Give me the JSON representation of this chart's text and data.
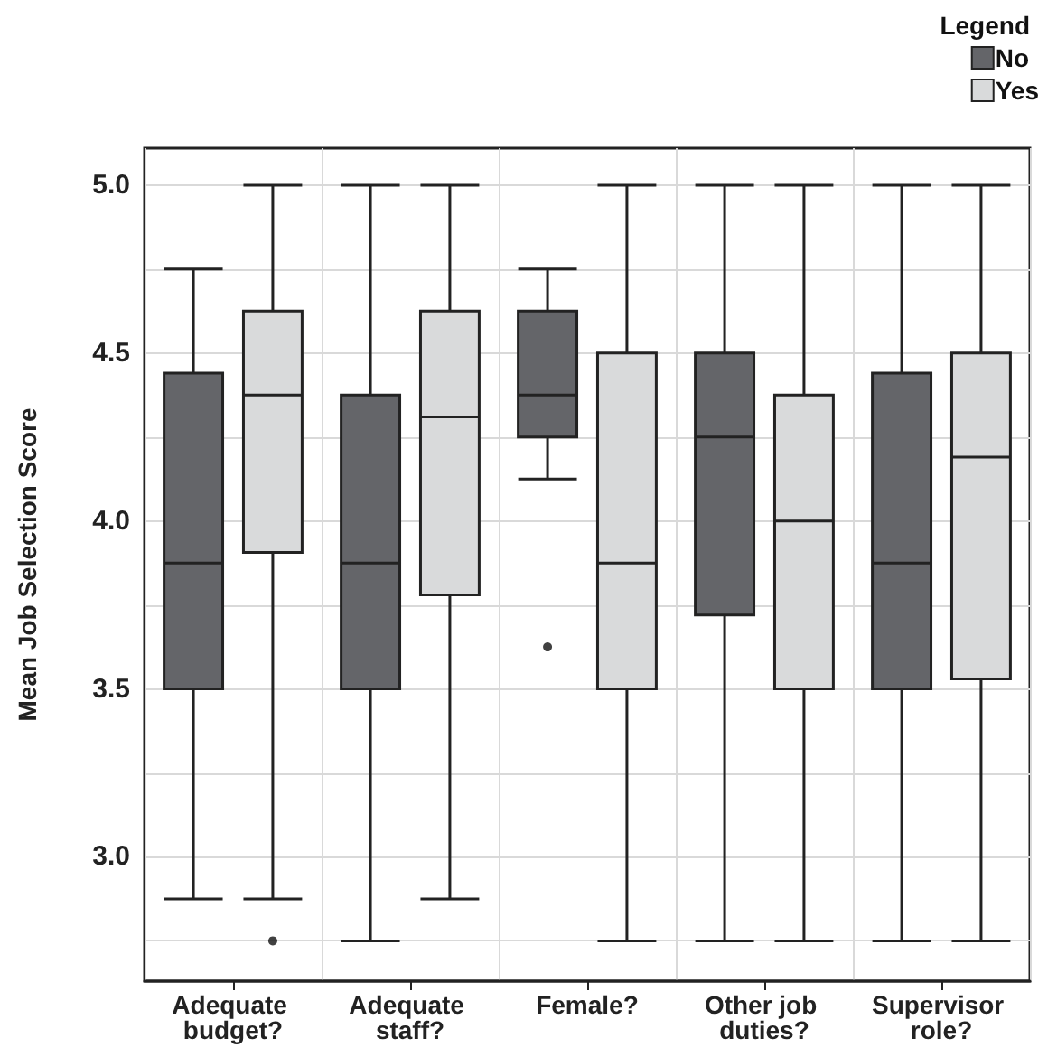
{
  "chart_data": {
    "type": "box",
    "ylabel": "Mean Job Selection Score",
    "legend_title": "Legend",
    "categories": [
      "Adequate budget?",
      "Adequate staff?",
      "Female?",
      "Other job duties?",
      "Supervisor role?"
    ],
    "series": [
      {
        "name": "No",
        "color": "#646569",
        "boxes": [
          {
            "low": 2.875,
            "q1": 3.5,
            "median": 3.875,
            "q3": 4.44,
            "high": 4.75
          },
          {
            "low": 2.75,
            "q1": 3.5,
            "median": 3.875,
            "q3": 4.375,
            "high": 5.0
          },
          {
            "low": 4.125,
            "q1": 4.25,
            "median": 4.375,
            "q3": 4.625,
            "high": 4.75,
            "outliers": [
              3.625
            ]
          },
          {
            "low": 2.75,
            "q1": 3.72,
            "median": 4.25,
            "q3": 4.5,
            "high": 5.0
          },
          {
            "low": 2.75,
            "q1": 3.5,
            "median": 3.875,
            "q3": 4.44,
            "high": 5.0
          }
        ]
      },
      {
        "name": "Yes",
        "color": "#d9dadb",
        "boxes": [
          {
            "low": 2.875,
            "q1": 3.906,
            "median": 4.375,
            "q3": 4.625,
            "high": 5.0,
            "outliers": [
              2.75
            ]
          },
          {
            "low": 2.875,
            "q1": 3.78,
            "median": 4.31,
            "q3": 4.625,
            "high": 5.0
          },
          {
            "low": 2.75,
            "q1": 3.5,
            "median": 3.875,
            "q3": 4.5,
            "high": 5.0
          },
          {
            "low": 2.75,
            "q1": 3.5,
            "median": 4.0,
            "q3": 4.375,
            "high": 5.0
          },
          {
            "low": 2.75,
            "q1": 3.53,
            "median": 4.19,
            "q3": 4.5,
            "high": 5.0
          }
        ]
      }
    ],
    "ylim": [
      2.63,
      5.11
    ],
    "yticks": [
      {
        "value": 2.75,
        "label": null
      },
      {
        "value": 3,
        "label": "3.0"
      },
      {
        "value": 3.25,
        "label": null
      },
      {
        "value": 3.5,
        "label": "3.5"
      },
      {
        "value": 3.75,
        "label": null
      },
      {
        "value": 4,
        "label": "4.0"
      },
      {
        "value": 4.25,
        "label": null
      },
      {
        "value": 4.5,
        "label": "4.5"
      },
      {
        "value": 4.75,
        "label": null
      },
      {
        "value": 5,
        "label": "5.0"
      }
    ],
    "grid": true,
    "legend": "top right"
  }
}
